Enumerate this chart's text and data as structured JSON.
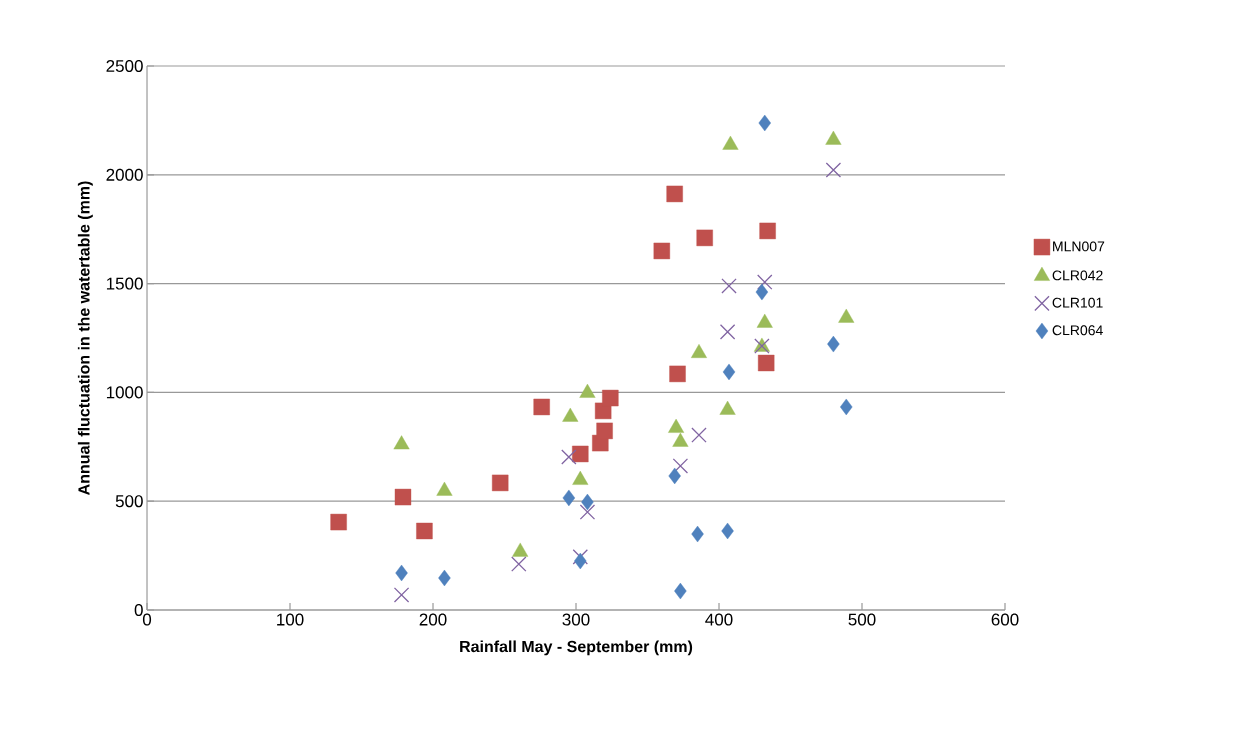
{
  "chart_data": {
    "type": "scatter",
    "xlabel": "Rainfall  May - September (mm)",
    "ylabel": "Annual fluctuation  in the watertable (mm)",
    "xlim": [
      0,
      600
    ],
    "xticks": [
      0,
      100,
      200,
      300,
      400,
      500,
      600
    ],
    "ylim": [
      0,
      2500
    ],
    "yticks": [
      0,
      500,
      1000,
      1500,
      2000,
      2500
    ],
    "grid": "y",
    "legend": "right",
    "series": [
      {
        "name": "MLN007",
        "color": "#c0504d",
        "marker": "square",
        "x": [
          134,
          179,
          194,
          247,
          276,
          303,
          317,
          320,
          319,
          324,
          360,
          369,
          371,
          390,
          434,
          433
        ],
        "values": [
          404,
          519,
          363,
          584,
          933,
          717,
          767,
          823,
          915,
          974,
          1650,
          1912,
          1085,
          1710,
          1742,
          1135
        ]
      },
      {
        "name": "CLR042",
        "color": "#9bbb59",
        "marker": "triangle",
        "x": [
          178,
          208,
          261,
          296,
          303,
          308,
          370,
          373,
          386,
          406,
          408,
          430,
          432,
          480,
          489
        ],
        "values": [
          760,
          547,
          267,
          887,
          597,
          997,
          836,
          772,
          1180,
          919,
          2137,
          1209,
          1319,
          2160,
          1342
        ]
      },
      {
        "name": "CLR101",
        "color": "#8064a2",
        "marker": "cross",
        "x": [
          178,
          260,
          295,
          308,
          303,
          373,
          386,
          480,
          407,
          432,
          406,
          430
        ],
        "values": [
          69,
          211,
          703,
          450,
          244,
          662,
          804,
          2022,
          1489,
          1507,
          1278,
          1213
        ]
      },
      {
        "name": "CLR064",
        "color": "#4f81bd",
        "marker": "diamond",
        "x": [
          178,
          208,
          295,
          308,
          303,
          369,
          373,
          385,
          406,
          407,
          432,
          430,
          480,
          489
        ],
        "values": [
          170,
          147,
          515,
          496,
          225,
          616,
          87,
          349,
          363,
          1094,
          2238,
          1461,
          1222,
          933
        ]
      }
    ]
  }
}
